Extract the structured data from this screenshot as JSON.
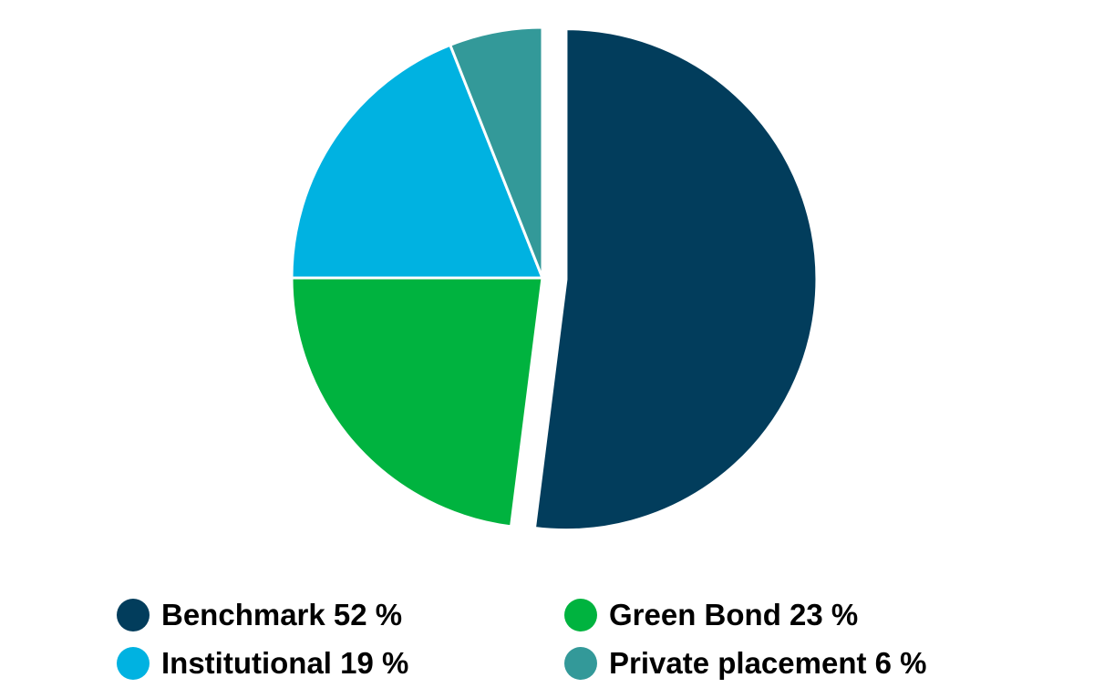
{
  "chart_data": {
    "type": "pie",
    "categories": [
      "Benchmark",
      "Green Bond",
      "Institutional",
      "Private placement"
    ],
    "values": [
      52,
      23,
      19,
      6
    ],
    "unit": "%",
    "legend": "bottom",
    "exploded": [
      "Benchmark"
    ],
    "colors": [
      "#023d5c",
      "#00b33f",
      "#00b2e1",
      "#339999"
    ]
  },
  "legend": [
    {
      "label": "Benchmark 52 %",
      "color": "#023d5c"
    },
    {
      "label": "Green Bond 23 %",
      "color": "#00b33f"
    },
    {
      "label": "Institutional 19 %",
      "color": "#00b2e1"
    },
    {
      "label": "Private placement 6 %",
      "color": "#339999"
    }
  ]
}
